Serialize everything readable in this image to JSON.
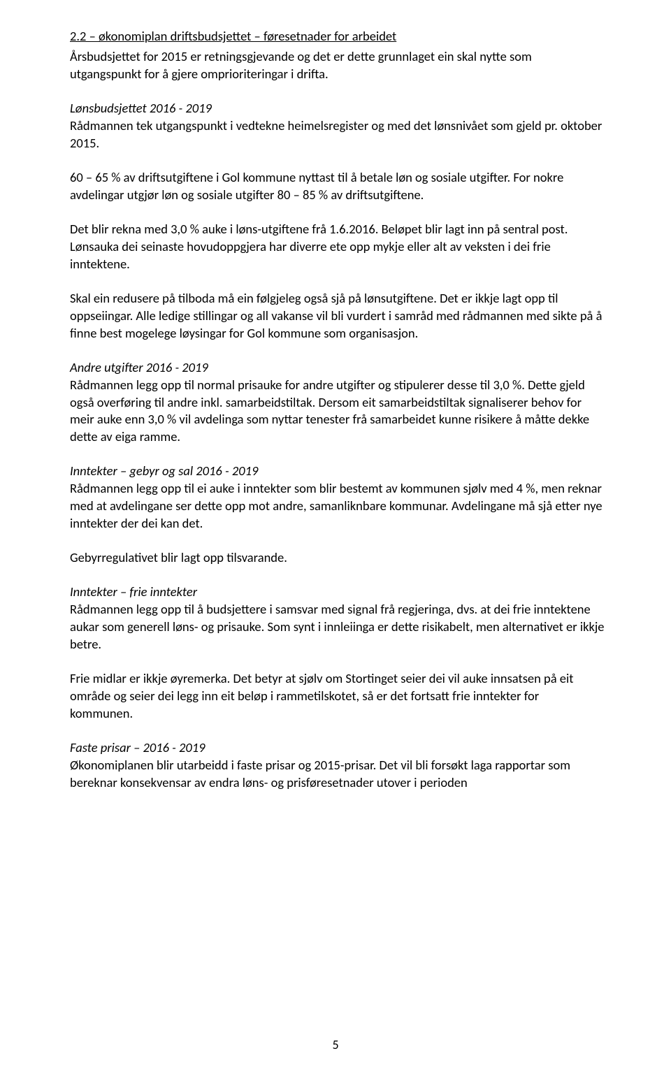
{
  "heading": "2.2 – økonomiplan driftsbudsjettet – føresetnader for arbeidet",
  "intro": "Årsbudsjettet for 2015 er retningsgjevande og det er dette grunnlaget ein skal nytte som utgangspunkt for å gjere omprioriteringar i drifta.",
  "sec1": {
    "title": "Lønsbudsjettet 2016 - 2019",
    "p1": "Rådmannen tek utgangspunkt i vedtekne heimelsregister og med det lønsnivået som gjeld pr. oktober 2015.",
    "p2": "60 – 65 % av driftsutgiftene i Gol kommune nyttast til å betale løn og sosiale utgifter. For nokre avdelingar utgjør løn og sosiale utgifter 80 – 85 % av driftsutgiftene.",
    "p3": "Det blir rekna med 3,0 % auke i løns-utgiftene frå 1.6.2016. Beløpet blir lagt inn på sentral post. Lønsauka dei seinaste hovudoppgjera har diverre ete opp mykje eller alt av veksten i dei frie inntektene.",
    "p4": "Skal ein redusere på tilboda må ein følgjeleg også sjå på lønsutgiftene. Det er ikkje lagt opp til oppseiingar. Alle ledige stillingar og all vakanse vil bli vurdert i samråd med rådmannen med sikte på å finne best mogelege løysingar for Gol kommune som organisasjon."
  },
  "sec2": {
    "title": "Andre utgifter 2016 - 2019",
    "p1": "Rådmannen legg opp til normal prisauke for andre utgifter og stipulerer desse til 3,0 %. Dette gjeld også overføring til andre inkl. samarbeidstiltak. Dersom eit samarbeidstiltak signaliserer behov for meir auke enn 3,0 % vil avdelinga som nyttar tenester frå samarbeidet kunne risikere å måtte dekke dette av eiga ramme."
  },
  "sec3": {
    "title": "Inntekter – gebyr og sal 2016 - 2019",
    "p1": "Rådmannen legg opp til ei auke i inntekter som blir bestemt av kommunen sjølv med 4 %, men reknar med at avdelingane ser dette opp mot andre, samanliknbare kommunar. Avdelingane må sjå etter nye inntekter der dei kan det.",
    "p2": "Gebyrregulativet blir lagt opp tilsvarande."
  },
  "sec4": {
    "title": "Inntekter – frie inntekter",
    "p1": "Rådmannen legg opp til å budsjettere i samsvar med signal frå regjeringa, dvs. at dei frie inntektene aukar som generell løns- og prisauke.  Som synt i innleiinga er dette risikabelt, men alternativet er ikkje betre.",
    "p2": "Frie midlar er ikkje øyremerka. Det betyr at sjølv om Stortinget seier dei vil auke innsatsen på eit område og seier dei legg inn eit beløp i rammetilskotet, så er det fortsatt frie inntekter for kommunen."
  },
  "sec5": {
    "title": "Faste prisar – 2016 - 2019",
    "p1": "Økonomiplanen blir utarbeidd i faste prisar og 2015-prisar. Det vil bli forsøkt laga rapportar som bereknar konsekvensar av endra løns- og prisføresetnader utover i perioden"
  },
  "pageNumber": "5"
}
